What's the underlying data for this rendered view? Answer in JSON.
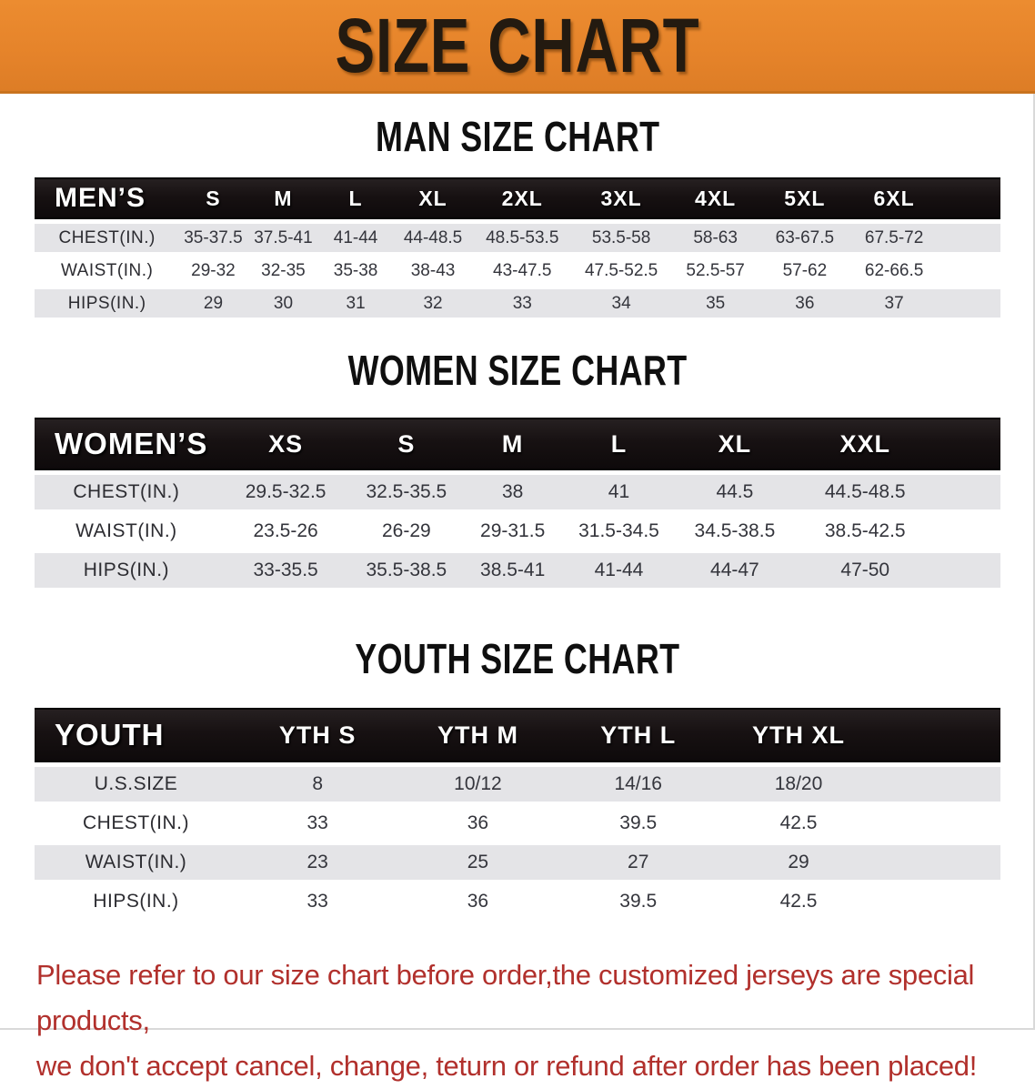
{
  "banner": {
    "title": "SIZE CHART",
    "bg_color": "#e5832a",
    "text_color": "#231a10"
  },
  "sections": [
    {
      "heading": "MAN SIZE CHART",
      "table": {
        "label": "MEN’S",
        "columns": [
          "S",
          "M",
          "L",
          "XL",
          "2XL",
          "3XL",
          "4XL",
          "5XL",
          "6XL"
        ],
        "rows": [
          {
            "label": "CHEST(IN.)",
            "values": [
              "35-37.5",
              "37.5-41",
              "41-44",
              "44-48.5",
              "48.5-53.5",
              "53.5-58",
              "58-63",
              "63-67.5",
              "67.5-72"
            ]
          },
          {
            "label": "WAIST(IN.)",
            "values": [
              "29-32",
              "32-35",
              "35-38",
              "38-43",
              "43-47.5",
              "47.5-52.5",
              "52.5-57",
              "57-62",
              "62-66.5"
            ]
          },
          {
            "label": "HIPS(IN.)",
            "values": [
              "29",
              "30",
              "31",
              "32",
              "33",
              "34",
              "35",
              "36",
              "37"
            ]
          }
        ]
      }
    },
    {
      "heading": "WOMEN SIZE CHART",
      "table": {
        "label": "WOMEN’S",
        "columns": [
          "XS",
          "S",
          "M",
          "L",
          "XL",
          "XXL"
        ],
        "rows": [
          {
            "label": "CHEST(IN.)",
            "values": [
              "29.5-32.5",
              "32.5-35.5",
              "38",
              "41",
              "44.5",
              "44.5-48.5"
            ]
          },
          {
            "label": "WAIST(IN.)",
            "values": [
              "23.5-26",
              "26-29",
              "29-31.5",
              "31.5-34.5",
              "34.5-38.5",
              "38.5-42.5"
            ]
          },
          {
            "label": "HIPS(IN.)",
            "values": [
              "33-35.5",
              "35.5-38.5",
              "38.5-41",
              "41-44",
              "44-47",
              "47-50"
            ]
          }
        ]
      }
    },
    {
      "heading": "YOUTH SIZE CHART",
      "table": {
        "label": "YOUTH",
        "columns": [
          "YTH S",
          "YTH M",
          "YTH L",
          "YTH XL"
        ],
        "rows": [
          {
            "label": "U.S.SIZE",
            "values": [
              "8",
              "10/12",
              "14/16",
              "18/20"
            ]
          },
          {
            "label": "CHEST(IN.)",
            "values": [
              "33",
              "36",
              "39.5",
              "42.5"
            ]
          },
          {
            "label": "WAIST(IN.)",
            "values": [
              "23",
              "25",
              "27",
              "29"
            ]
          },
          {
            "label": "HIPS(IN.)",
            "values": [
              "33",
              "36",
              "39.5",
              "42.5"
            ]
          }
        ]
      }
    }
  ],
  "disclaimer": {
    "line1": "Please refer to our size chart before order,the customized jerseys are special products,",
    "line2": "we don't accept cancel, change, teturn or refund after order has been placed!",
    "text_color": "#b1302c"
  }
}
